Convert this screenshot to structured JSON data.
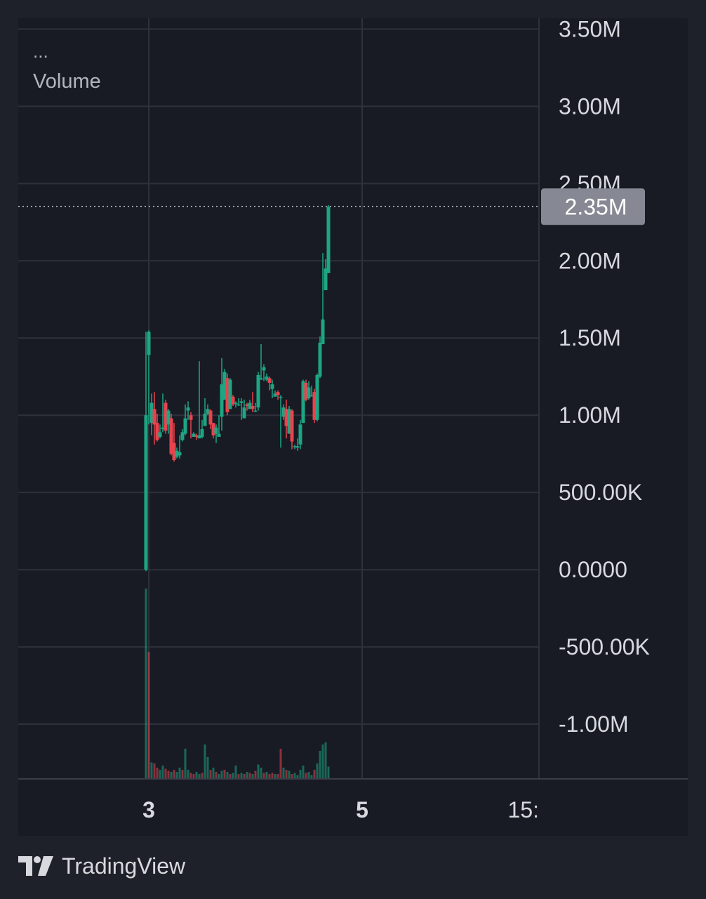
{
  "legend": {
    "menu": "...",
    "title": "Volume"
  },
  "price_tag": "2.35M",
  "brand": {
    "name": "TradingView",
    "logo_text": "TV"
  },
  "colors": {
    "background": "#1f212a",
    "plot_background": "#181b24",
    "grid": "#2e313b",
    "up": "#1ea583",
    "down": "#e9434e",
    "axis_text": "#d7d9de",
    "price_tag_bg": "#868993"
  },
  "chart_data": {
    "type": "candlestick",
    "y_axis": {
      "range": [
        -1350000,
        3570000
      ],
      "tick_values": [
        3500000,
        3000000,
        2500000,
        2000000,
        1500000,
        1000000,
        500000,
        0,
        -500000,
        -1000000
      ],
      "tick_labels": [
        "3.50M",
        "3.00M",
        "2.50M",
        "2.00M",
        "1.50M",
        "1.00M",
        "500.00K",
        "0.0000",
        "-500.00K",
        "-1.00M"
      ]
    },
    "x_axis": {
      "ticks": [
        {
          "label": "3",
          "index": 1
        },
        {
          "label": "5",
          "index": 77
        },
        {
          "label": "15:",
          "index": 139
        }
      ]
    },
    "current_value": 2350000,
    "candles": [
      [
        0,
        1000000,
        1540000,
        -10000,
        1390000
      ],
      [
        1390000,
        1540000,
        1550000,
        940000,
        950000
      ],
      [
        950000,
        1080000,
        1140000,
        870000,
        1040000
      ],
      [
        1040000,
        940000,
        1150000,
        810000,
        950000
      ],
      [
        950000,
        840000,
        1010000,
        830000,
        860000
      ],
      [
        860000,
        890000,
        940000,
        850000,
        910000
      ],
      [
        910000,
        920000,
        1140000,
        890000,
        1080000
      ],
      [
        1080000,
        900000,
        1100000,
        880000,
        940000
      ],
      [
        940000,
        1030000,
        1040000,
        880000,
        980000
      ],
      [
        980000,
        750000,
        1010000,
        740000,
        820000
      ],
      [
        820000,
        710000,
        950000,
        700000,
        730000
      ],
      [
        730000,
        770000,
        790000,
        720000,
        740000
      ],
      [
        740000,
        760000,
        870000,
        720000,
        840000
      ],
      [
        840000,
        890000,
        910000,
        830000,
        880000
      ],
      [
        880000,
        980000,
        1070000,
        870000,
        1030000
      ],
      [
        1030000,
        1050000,
        1090000,
        970000,
        1000000
      ],
      [
        1000000,
        970000,
        1020000,
        850000,
        860000
      ],
      [
        860000,
        880000,
        890000,
        860000,
        870000
      ],
      [
        870000,
        860000,
        880000,
        840000,
        850000
      ],
      [
        850000,
        870000,
        1350000,
        860000,
        860000
      ],
      [
        860000,
        910000,
        970000,
        850000,
        930000
      ],
      [
        930000,
        1010000,
        1110000,
        990000,
        1010000
      ],
      [
        1010000,
        1040000,
        1070000,
        1000000,
        1030000
      ],
      [
        1030000,
        940000,
        1040000,
        910000,
        950000
      ],
      [
        950000,
        870000,
        940000,
        850000,
        880000
      ],
      [
        880000,
        920000,
        940000,
        820000,
        860000
      ],
      [
        860000,
        880000,
        1000000,
        870000,
        990000
      ],
      [
        990000,
        1200000,
        1370000,
        900000,
        1100000
      ],
      [
        1100000,
        1280000,
        1300000,
        1150000,
        1240000
      ],
      [
        1240000,
        1020000,
        1270000,
        1000000,
        1040000
      ],
      [
        1040000,
        1230000,
        1240000,
        1100000,
        1120000
      ],
      [
        1120000,
        1070000,
        1130000,
        1060000,
        1080000
      ],
      [
        1080000,
        1080000,
        1090000,
        1050000,
        1070000
      ],
      [
        1070000,
        1070000,
        1110000,
        1060000,
        1080000
      ],
      [
        1080000,
        1090000,
        1110000,
        970000,
        980000
      ],
      [
        980000,
        1050000,
        1100000,
        1010000,
        1070000
      ],
      [
        1070000,
        1060000,
        1080000,
        1030000,
        1040000
      ],
      [
        1040000,
        1080000,
        1100000,
        1040000,
        1060000
      ],
      [
        1060000,
        1040000,
        1150000,
        1020000,
        1030000
      ],
      [
        1030000,
        1030000,
        1080000,
        1020000,
        1050000
      ],
      [
        1050000,
        1260000,
        1280000,
        1030000,
        1230000
      ],
      [
        1230000,
        1240000,
        1460000,
        1230000,
        1290000
      ],
      [
        1290000,
        1310000,
        1330000,
        1220000,
        1230000
      ],
      [
        1230000,
        1250000,
        1270000,
        1220000,
        1240000
      ],
      [
        1240000,
        1210000,
        1250000,
        1160000,
        1170000
      ],
      [
        1170000,
        1200000,
        1230000,
        1110000,
        1120000
      ],
      [
        1120000,
        1140000,
        1160000,
        1130000,
        1150000
      ],
      [
        1150000,
        1130000,
        1160000,
        1100000,
        1120000
      ],
      [
        1120000,
        1120000,
        1130000,
        790000,
        990000
      ],
      [
        990000,
        1050000,
        1070000,
        970000,
        1040000
      ],
      [
        1040000,
        930000,
        1100000,
        850000,
        880000
      ],
      [
        880000,
        1040000,
        1060000,
        1000000,
        1030000
      ],
      [
        1030000,
        830000,
        1040000,
        780000,
        800000
      ],
      [
        800000,
        800000,
        810000,
        780000,
        790000
      ],
      [
        790000,
        800000,
        850000,
        770000,
        810000
      ],
      [
        810000,
        940000,
        970000,
        780000,
        950000
      ],
      [
        950000,
        1220000,
        1230000,
        1140000,
        1210000
      ],
      [
        1210000,
        1100000,
        1230000,
        1090000,
        1110000
      ],
      [
        1110000,
        1180000,
        1220000,
        1100000,
        1130000
      ],
      [
        1130000,
        1130000,
        1190000,
        1120000,
        1150000
      ],
      [
        1150000,
        970000,
        1170000,
        950000,
        970000
      ],
      [
        970000,
        1260000,
        1270000,
        960000,
        1250000
      ],
      [
        1250000,
        1470000,
        1510000,
        1240000,
        1460000
      ],
      [
        1460000,
        1620000,
        2050000,
        1460000,
        1810000
      ],
      [
        1810000,
        1950000,
        2010000,
        1860000,
        1920000
      ],
      [
        1920000,
        2350000,
        2360000,
        1940000,
        2350000
      ]
    ],
    "volume": [
      [
        1,
        0.18
      ],
      [
        0,
        0.12
      ],
      [
        1,
        0.015
      ],
      [
        0,
        0.014
      ],
      [
        0,
        0.01
      ],
      [
        1,
        0.008
      ],
      [
        1,
        0.012
      ],
      [
        0,
        0.009
      ],
      [
        0,
        0.007
      ],
      [
        1,
        0.006
      ],
      [
        0,
        0.008
      ],
      [
        1,
        0.006
      ],
      [
        1,
        0.01
      ],
      [
        0,
        0.008
      ],
      [
        1,
        0.028
      ],
      [
        1,
        0.008
      ],
      [
        0,
        0.005
      ],
      [
        0,
        0.004
      ],
      [
        1,
        0.006
      ],
      [
        1,
        0.004
      ],
      [
        0,
        0.005
      ],
      [
        1,
        0.032
      ],
      [
        1,
        0.02
      ],
      [
        0,
        0.008
      ],
      [
        1,
        0.01
      ],
      [
        0,
        0.006
      ],
      [
        1,
        0.004
      ],
      [
        1,
        0.007
      ],
      [
        0,
        0.008
      ],
      [
        1,
        0.006
      ],
      [
        0,
        0.004
      ],
      [
        1,
        0.005
      ],
      [
        1,
        0.012
      ],
      [
        0,
        0.004
      ],
      [
        1,
        0.005
      ],
      [
        0,
        0.004
      ],
      [
        1,
        0.006
      ],
      [
        0,
        0.005
      ],
      [
        1,
        0.004
      ],
      [
        0,
        0.007
      ],
      [
        1,
        0.013
      ],
      [
        1,
        0.01
      ],
      [
        0,
        0.005
      ],
      [
        1,
        0.006
      ],
      [
        0,
        0.004
      ],
      [
        0,
        0.005
      ],
      [
        1,
        0.004
      ],
      [
        0,
        0.004
      ],
      [
        0,
        0.028
      ],
      [
        1,
        0.01
      ],
      [
        0,
        0.008
      ],
      [
        1,
        0.007
      ],
      [
        0,
        0.004
      ],
      [
        1,
        0.005
      ],
      [
        1,
        0.003
      ],
      [
        1,
        0.008
      ],
      [
        1,
        0.012
      ],
      [
        0,
        0.005
      ],
      [
        1,
        0.006
      ],
      [
        1,
        0.003
      ],
      [
        0,
        0.008
      ],
      [
        1,
        0.014
      ],
      [
        1,
        0.026
      ],
      [
        1,
        0.032
      ],
      [
        1,
        0.034
      ],
      [
        1,
        0.011
      ]
    ]
  }
}
